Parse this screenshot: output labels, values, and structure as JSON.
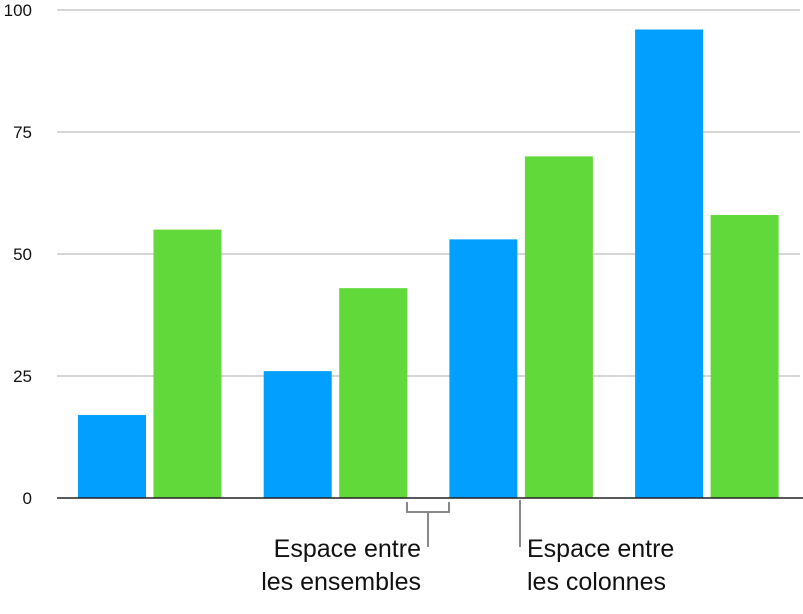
{
  "chart_data": {
    "type": "bar",
    "title": "",
    "xlabel": "",
    "ylabel": "",
    "ylim": [
      0,
      100
    ],
    "yticks": [
      0,
      25,
      50,
      75,
      100
    ],
    "grid": true,
    "categories": [
      "",
      "",
      "",
      ""
    ],
    "series": [
      {
        "values": [
          17,
          26,
          53,
          96
        ],
        "color": "#039ffe"
      },
      {
        "values": [
          55,
          43,
          70,
          58
        ],
        "color": "#62d93a"
      }
    ],
    "annotations": [
      {
        "text_line1": "Espace entre",
        "text_line2": "les ensembles"
      },
      {
        "text_line1": "Espace entre",
        "text_line2": "les colonnes"
      }
    ]
  }
}
